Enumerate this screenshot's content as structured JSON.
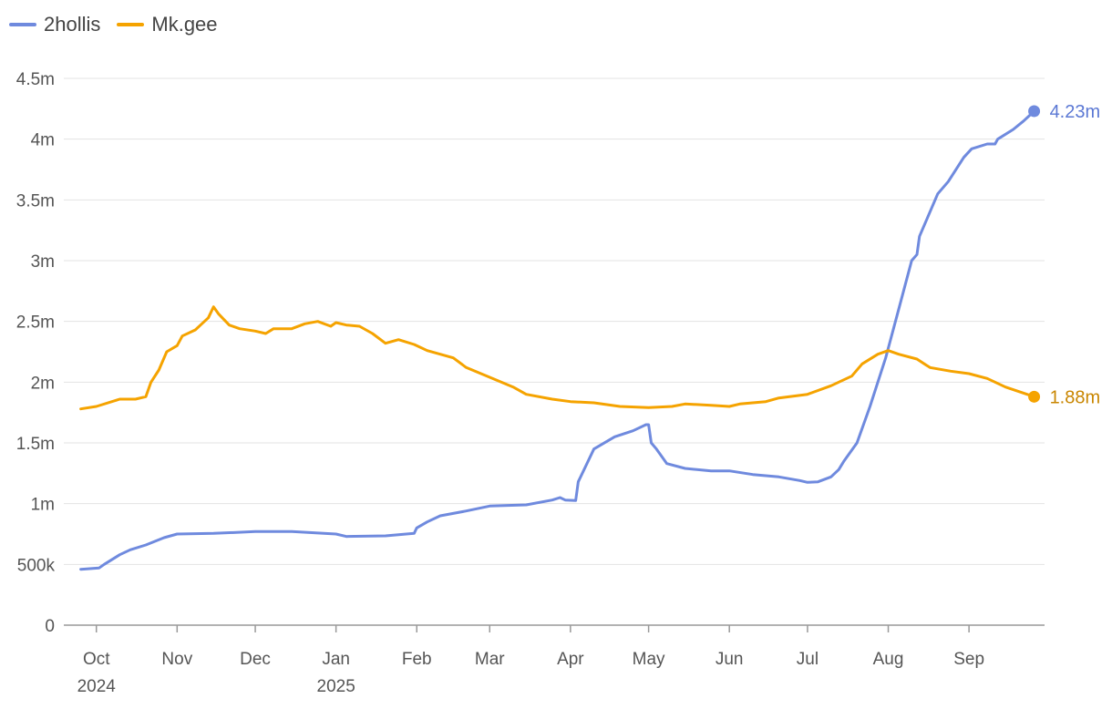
{
  "chart_data": {
    "type": "line",
    "title": "",
    "xlabel": "",
    "ylabel": "",
    "ylim": [
      0,
      4500000
    ],
    "grid": true,
    "legend_position": "top-left",
    "y_ticks": [
      {
        "value": 0,
        "label": "0"
      },
      {
        "value": 500000,
        "label": "500k"
      },
      {
        "value": 1000000,
        "label": "1m"
      },
      {
        "value": 1500000,
        "label": "1.5m"
      },
      {
        "value": 2000000,
        "label": "2m"
      },
      {
        "value": 2500000,
        "label": "2.5m"
      },
      {
        "value": 3000000,
        "label": "3m"
      },
      {
        "value": 3500000,
        "label": "3.5m"
      },
      {
        "value": 4000000,
        "label": "4m"
      },
      {
        "value": 4500000,
        "label": "4.5m"
      }
    ],
    "x_ticks": [
      {
        "date": "2024-10-01",
        "label": "Oct",
        "sublabel": "2024"
      },
      {
        "date": "2024-11-01",
        "label": "Nov",
        "sublabel": ""
      },
      {
        "date": "2024-12-01",
        "label": "Dec",
        "sublabel": ""
      },
      {
        "date": "2025-01-01",
        "label": "Jan",
        "sublabel": "2025"
      },
      {
        "date": "2025-02-01",
        "label": "Feb",
        "sublabel": ""
      },
      {
        "date": "2025-03-01",
        "label": "Mar",
        "sublabel": ""
      },
      {
        "date": "2025-04-01",
        "label": "Apr",
        "sublabel": ""
      },
      {
        "date": "2025-05-01",
        "label": "May",
        "sublabel": ""
      },
      {
        "date": "2025-06-01",
        "label": "Jun",
        "sublabel": ""
      },
      {
        "date": "2025-07-01",
        "label": "Jul",
        "sublabel": ""
      },
      {
        "date": "2025-08-01",
        "label": "Aug",
        "sublabel": ""
      },
      {
        "date": "2025-09-01",
        "label": "Sep",
        "sublabel": ""
      }
    ],
    "series": [
      {
        "name": "2hollis",
        "color": "#6f8ade",
        "end_label": "4.23m",
        "points": [
          [
            "2024-09-25",
            460000
          ],
          [
            "2024-10-02",
            470000
          ],
          [
            "2024-10-04",
            500000
          ],
          [
            "2024-10-10",
            580000
          ],
          [
            "2024-10-14",
            620000
          ],
          [
            "2024-10-20",
            660000
          ],
          [
            "2024-10-27",
            720000
          ],
          [
            "2024-11-01",
            750000
          ],
          [
            "2024-11-15",
            755000
          ],
          [
            "2024-12-01",
            770000
          ],
          [
            "2024-12-15",
            770000
          ],
          [
            "2025-01-01",
            750000
          ],
          [
            "2025-01-05",
            730000
          ],
          [
            "2025-01-20",
            735000
          ],
          [
            "2025-01-25",
            745000
          ],
          [
            "2025-01-31",
            755000
          ],
          [
            "2025-02-01",
            800000
          ],
          [
            "2025-02-05",
            850000
          ],
          [
            "2025-02-10",
            900000
          ],
          [
            "2025-02-20",
            940000
          ],
          [
            "2025-03-01",
            980000
          ],
          [
            "2025-03-15",
            990000
          ],
          [
            "2025-03-25",
            1030000
          ],
          [
            "2025-03-28",
            1050000
          ],
          [
            "2025-03-30",
            1030000
          ],
          [
            "2025-04-03",
            1025000
          ],
          [
            "2025-04-04",
            1180000
          ],
          [
            "2025-04-10",
            1450000
          ],
          [
            "2025-04-18",
            1550000
          ],
          [
            "2025-04-25",
            1600000
          ],
          [
            "2025-04-30",
            1650000
          ],
          [
            "2025-05-01",
            1650000
          ],
          [
            "2025-05-02",
            1500000
          ],
          [
            "2025-05-04",
            1450000
          ],
          [
            "2025-05-08",
            1330000
          ],
          [
            "2025-05-15",
            1290000
          ],
          [
            "2025-05-25",
            1270000
          ],
          [
            "2025-06-01",
            1270000
          ],
          [
            "2025-06-10",
            1240000
          ],
          [
            "2025-06-20",
            1220000
          ],
          [
            "2025-06-28",
            1190000
          ],
          [
            "2025-07-01",
            1175000
          ],
          [
            "2025-07-05",
            1180000
          ],
          [
            "2025-07-10",
            1220000
          ],
          [
            "2025-07-13",
            1280000
          ],
          [
            "2025-07-15",
            1350000
          ],
          [
            "2025-07-20",
            1500000
          ],
          [
            "2025-07-25",
            1800000
          ],
          [
            "2025-07-31",
            2200000
          ],
          [
            "2025-08-05",
            2600000
          ],
          [
            "2025-08-10",
            3000000
          ],
          [
            "2025-08-12",
            3050000
          ],
          [
            "2025-08-13",
            3200000
          ],
          [
            "2025-08-16",
            3350000
          ],
          [
            "2025-08-20",
            3550000
          ],
          [
            "2025-08-24",
            3650000
          ],
          [
            "2025-08-30",
            3850000
          ],
          [
            "2025-09-02",
            3920000
          ],
          [
            "2025-09-08",
            3960000
          ],
          [
            "2025-09-11",
            3960000
          ],
          [
            "2025-09-12",
            4000000
          ],
          [
            "2025-09-18",
            4080000
          ],
          [
            "2025-09-22",
            4150000
          ],
          [
            "2025-09-26",
            4230000
          ]
        ]
      },
      {
        "name": "Mk.gee",
        "color": "#f5a300",
        "end_label": "1.88m",
        "points": [
          [
            "2024-09-25",
            1780000
          ],
          [
            "2024-10-01",
            1800000
          ],
          [
            "2024-10-10",
            1860000
          ],
          [
            "2024-10-16",
            1860000
          ],
          [
            "2024-10-20",
            1880000
          ],
          [
            "2024-10-22",
            2000000
          ],
          [
            "2024-10-25",
            2100000
          ],
          [
            "2024-10-28",
            2250000
          ],
          [
            "2024-11-01",
            2300000
          ],
          [
            "2024-11-03",
            2380000
          ],
          [
            "2024-11-08",
            2430000
          ],
          [
            "2024-11-10",
            2470000
          ],
          [
            "2024-11-13",
            2530000
          ],
          [
            "2024-11-15",
            2620000
          ],
          [
            "2024-11-17",
            2560000
          ],
          [
            "2024-11-21",
            2470000
          ],
          [
            "2024-11-25",
            2440000
          ],
          [
            "2024-12-01",
            2420000
          ],
          [
            "2024-12-05",
            2400000
          ],
          [
            "2024-12-08",
            2440000
          ],
          [
            "2024-12-15",
            2440000
          ],
          [
            "2024-12-20",
            2480000
          ],
          [
            "2024-12-25",
            2500000
          ],
          [
            "2024-12-30",
            2460000
          ],
          [
            "2025-01-01",
            2490000
          ],
          [
            "2025-01-05",
            2470000
          ],
          [
            "2025-01-10",
            2460000
          ],
          [
            "2025-01-15",
            2400000
          ],
          [
            "2025-01-20",
            2320000
          ],
          [
            "2025-01-25",
            2350000
          ],
          [
            "2025-01-31",
            2310000
          ],
          [
            "2025-02-05",
            2260000
          ],
          [
            "2025-02-15",
            2200000
          ],
          [
            "2025-02-20",
            2120000
          ],
          [
            "2025-03-01",
            2040000
          ],
          [
            "2025-03-10",
            1960000
          ],
          [
            "2025-03-15",
            1900000
          ],
          [
            "2025-03-25",
            1860000
          ],
          [
            "2025-04-01",
            1840000
          ],
          [
            "2025-04-10",
            1830000
          ],
          [
            "2025-04-20",
            1800000
          ],
          [
            "2025-05-01",
            1790000
          ],
          [
            "2025-05-10",
            1800000
          ],
          [
            "2025-05-15",
            1820000
          ],
          [
            "2025-05-25",
            1810000
          ],
          [
            "2025-06-01",
            1800000
          ],
          [
            "2025-06-05",
            1820000
          ],
          [
            "2025-06-15",
            1840000
          ],
          [
            "2025-06-20",
            1870000
          ],
          [
            "2025-07-01",
            1900000
          ],
          [
            "2025-07-10",
            1970000
          ],
          [
            "2025-07-18",
            2050000
          ],
          [
            "2025-07-22",
            2150000
          ],
          [
            "2025-07-28",
            2230000
          ],
          [
            "2025-08-01",
            2260000
          ],
          [
            "2025-08-05",
            2230000
          ],
          [
            "2025-08-12",
            2190000
          ],
          [
            "2025-08-17",
            2120000
          ],
          [
            "2025-08-25",
            2090000
          ],
          [
            "2025-09-01",
            2070000
          ],
          [
            "2025-09-08",
            2030000
          ],
          [
            "2025-09-15",
            1960000
          ],
          [
            "2025-09-26",
            1880000
          ]
        ]
      }
    ]
  }
}
